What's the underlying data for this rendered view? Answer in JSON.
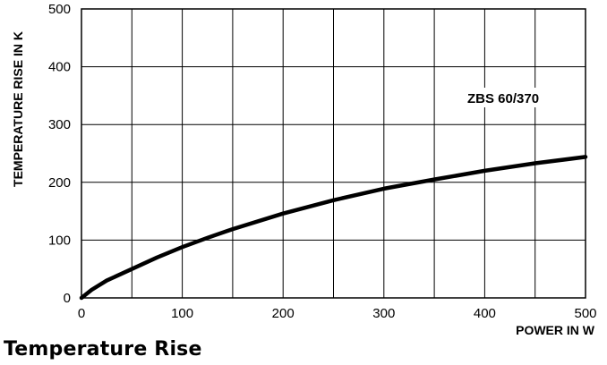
{
  "caption": "Temperature Rise",
  "chart_data": {
    "type": "line",
    "xlabel": "POWER IN W",
    "ylabel": "TEMPERATURE RISE IN K",
    "xlim": [
      0,
      500
    ],
    "ylim": [
      0,
      500
    ],
    "x_ticks": [
      0,
      100,
      200,
      300,
      400,
      500
    ],
    "y_ticks": [
      0,
      100,
      200,
      300,
      400,
      500
    ],
    "x_gridlines": [
      0,
      50,
      100,
      150,
      200,
      250,
      300,
      350,
      400,
      450,
      500
    ],
    "y_gridlines": [
      0,
      100,
      200,
      300,
      400,
      500
    ],
    "grid": true,
    "series": [
      {
        "name": "ZBS 60/370",
        "color": "#000000",
        "x": [
          0,
          10,
          25,
          50,
          75,
          100,
          125,
          150,
          200,
          250,
          300,
          350,
          400,
          450,
          500
        ],
        "y": [
          0,
          14,
          30,
          50,
          70,
          88,
          104,
          119,
          146,
          169,
          189,
          205,
          220,
          233,
          244
        ]
      }
    ]
  }
}
